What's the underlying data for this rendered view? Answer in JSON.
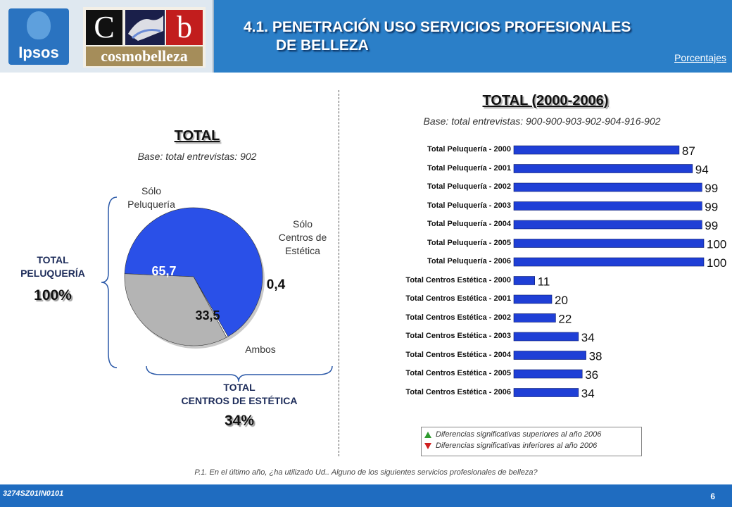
{
  "header": {
    "title_line1": "4.1. PENETRACIÓN USO SERVICIOS PROFESIONALES",
    "title_line2": "DE BELLEZA",
    "unit": "Porcentajes",
    "ipsos_logo": "Ipsos",
    "cb_logo_c": "C",
    "cb_logo_b": "b",
    "cb_logo_word": "cosmobelleza"
  },
  "left": {
    "title": "TOTAL",
    "base": "Base: total entrevistas: 902",
    "label_solo_peluqueria": [
      "Sólo",
      "Peluquería"
    ],
    "label_solo_centros": [
      "Sólo",
      "Centros de",
      "Estética"
    ],
    "label_ambos": "Ambos",
    "total_peluqueria_label": [
      "TOTAL",
      "PELUQUERÍA"
    ],
    "total_peluqueria_pct": "100%",
    "total_centros_label": [
      "TOTAL",
      "CENTROS DE ESTÉTICA"
    ],
    "total_centros_pct": "34%"
  },
  "right": {
    "title": "TOTAL (2000-2006)",
    "base": "Base: total entrevistas: 900-900-903-902-904-916-902"
  },
  "legend": {
    "up": "Diferencias significativas superiores al año 2006",
    "down": "Diferencias significativas inferiores al año 2006",
    "up_color": "#2e9b2e",
    "down_color": "#d02020"
  },
  "question": "P.1. En el último año, ¿ha utilizado Ud.. Alguno de los siguientes servicios profesionales de belleza?",
  "footer": {
    "code": "3274SZ01IN0101",
    "page": "6"
  },
  "colors": {
    "header": "#2b7fc8",
    "bar": "#1f3fd6",
    "pie_blue": "#2a50e8",
    "pie_grey": "#b4b4b4",
    "pie_white": "#ffffff"
  },
  "chart_data": [
    {
      "type": "pie",
      "title": "TOTAL",
      "slices": [
        {
          "name": "Sólo Peluquería",
          "value": 65.7,
          "label": "65,7"
        },
        {
          "name": "Sólo Centros de Estética",
          "value": 0.4,
          "label": "0,4"
        },
        {
          "name": "Ambos",
          "value": 33.5,
          "label": "33,5"
        }
      ]
    },
    {
      "type": "bar",
      "orientation": "horizontal",
      "title": "TOTAL (2000-2006)",
      "xlim": [
        0,
        100
      ],
      "categories": [
        "Total Peluquería - 2000",
        "Total Peluquería - 2001",
        "Total Peluquería - 2002",
        "Total Peluquería - 2003",
        "Total Peluquería - 2004",
        "Total Peluquería - 2005",
        "Total Peluquería - 2006",
        "Total Centros Estética - 2000",
        "Total Centros Estética - 2001",
        "Total Centros Estética - 2002",
        "Total Centros Estética - 2003",
        "Total Centros Estética - 2004",
        "Total Centros Estética - 2005",
        "Total Centros Estética - 2006"
      ],
      "values": [
        87,
        94,
        99,
        99,
        99,
        100,
        100,
        11,
        20,
        22,
        34,
        38,
        36,
        34
      ]
    }
  ]
}
